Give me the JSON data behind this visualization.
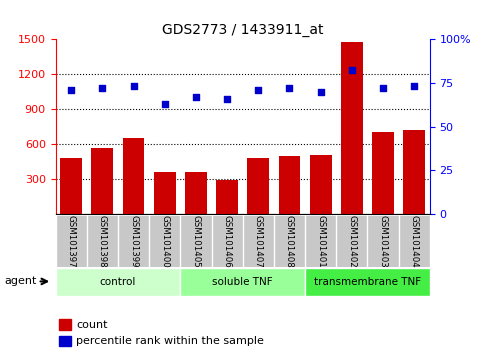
{
  "title": "GDS2773 / 1433911_at",
  "categories": [
    "GSM101397",
    "GSM101398",
    "GSM101399",
    "GSM101400",
    "GSM101405",
    "GSM101406",
    "GSM101407",
    "GSM101408",
    "GSM101401",
    "GSM101402",
    "GSM101403",
    "GSM101404"
  ],
  "count_values": [
    480,
    570,
    650,
    360,
    360,
    290,
    480,
    500,
    510,
    1470,
    700,
    720
  ],
  "percentile_values": [
    71,
    72,
    73,
    63,
    67,
    66,
    71,
    72,
    70,
    82,
    72,
    73
  ],
  "groups": [
    {
      "label": "control",
      "start": 0,
      "end": 3,
      "color": "#ccffcc"
    },
    {
      "label": "soluble TNF",
      "start": 4,
      "end": 7,
      "color": "#99ff99"
    },
    {
      "label": "transmembrane TNF",
      "start": 8,
      "end": 11,
      "color": "#44ee44"
    }
  ],
  "left_ylim": [
    0,
    1500
  ],
  "left_yticks": [
    300,
    600,
    900,
    1200,
    1500
  ],
  "right_ylim": [
    0,
    100
  ],
  "right_yticks": [
    0,
    25,
    50,
    75,
    100
  ],
  "right_yticklabels": [
    "0",
    "25",
    "50",
    "75",
    "100%"
  ],
  "bar_color": "#cc0000",
  "dot_color": "#0000cc",
  "bg_color": "#c8c8c8",
  "plot_bg": "#ffffff",
  "agent_label": "agent",
  "legend_count_label": "count",
  "legend_percentile_label": "percentile rank within the sample"
}
